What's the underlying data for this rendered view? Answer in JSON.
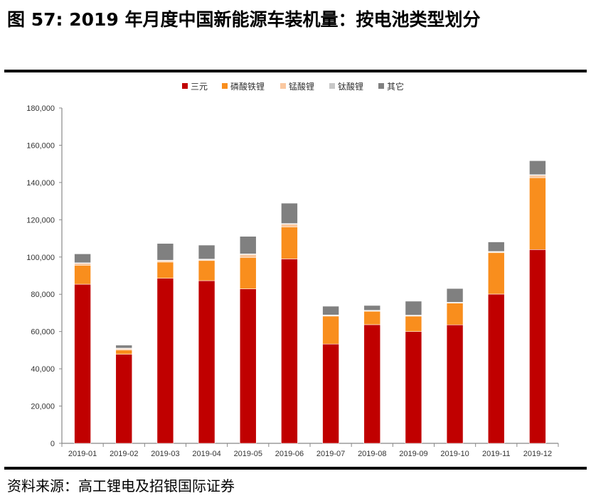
{
  "title": "图 57: 2019 年月度中国新能源车装机量：按电池类型划分",
  "source": "资料来源：高工锂电及招银国际证券",
  "chart_data": {
    "type": "bar",
    "stacked": true,
    "title": "",
    "xlabel": "",
    "ylabel": "",
    "ylim": [
      0,
      180000
    ],
    "yticks": [
      0,
      20000,
      40000,
      60000,
      80000,
      100000,
      120000,
      140000,
      160000,
      180000
    ],
    "ytick_labels": [
      "0",
      "20,000",
      "40,000",
      "60,000",
      "80,000",
      "100,000",
      "120,000",
      "140,000",
      "160,000",
      "180,000"
    ],
    "grid": false,
    "legend_position": "top",
    "categories": [
      "2019-01",
      "2019-02",
      "2019-03",
      "2019-04",
      "2019-05",
      "2019-06",
      "2019-07",
      "2019-08",
      "2019-09",
      "2019-10",
      "2019-11",
      "2019-12"
    ],
    "series": [
      {
        "name": "三元",
        "color": "#C00000",
        "values": [
          85400,
          47800,
          88600,
          87300,
          82900,
          99000,
          53300,
          63700,
          60000,
          63600,
          80100,
          104000
        ]
      },
      {
        "name": "磷酸铁锂",
        "color": "#F98E1D",
        "values": [
          10200,
          2300,
          8700,
          10800,
          16900,
          17200,
          15000,
          7200,
          8300,
          11700,
          22200,
          38600
        ]
      },
      {
        "name": "锰酸锂",
        "color": "#FAC8A0",
        "values": [
          1000,
          700,
          700,
          500,
          1600,
          1500,
          400,
          300,
          300,
          200,
          500,
          1300
        ]
      },
      {
        "name": "钛酸锂",
        "color": "#C8C8C8",
        "values": [
          300,
          300,
          300,
          300,
          300,
          300,
          200,
          200,
          200,
          200,
          200,
          300
        ]
      },
      {
        "name": "其它",
        "color": "#808080",
        "values": [
          4800,
          1600,
          9000,
          7500,
          9400,
          10900,
          4700,
          2600,
          7500,
          7400,
          5100,
          7500
        ]
      }
    ]
  }
}
